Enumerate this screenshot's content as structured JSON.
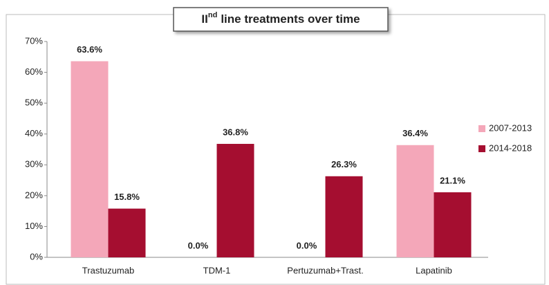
{
  "chart_data": {
    "type": "bar",
    "title": [
      "II",
      "nd",
      "line treatments over time"
    ],
    "categories": [
      "Trastuzumab",
      "TDM-1",
      "Pertuzumab+Trast.",
      "Lapatinib"
    ],
    "series": [
      {
        "name": "2007-2013",
        "color": "#f4a7b9",
        "values": [
          63.6,
          0.0,
          0.0,
          36.4
        ],
        "value_labels": [
          "63.6%",
          "0.0%",
          "0.0%",
          "36.4%"
        ]
      },
      {
        "name": "2014-2018",
        "color": "#a50e30",
        "values": [
          15.8,
          36.8,
          26.3,
          21.1
        ],
        "value_labels": [
          "15.8%",
          "36.8%",
          "26.3%",
          "21.1%"
        ]
      }
    ],
    "ylim": [
      0,
      70
    ],
    "yticks": [
      {
        "value": 0,
        "label": "0%"
      },
      {
        "value": 10,
        "label": "10%"
      },
      {
        "value": 20,
        "label": "20%"
      },
      {
        "value": 30,
        "label": "30%"
      },
      {
        "value": 40,
        "label": "40%"
      },
      {
        "value": 50,
        "label": "50%"
      },
      {
        "value": 60,
        "label": "60%"
      },
      {
        "value": 70,
        "label": "70%"
      }
    ],
    "grid": false,
    "legend": "right"
  }
}
